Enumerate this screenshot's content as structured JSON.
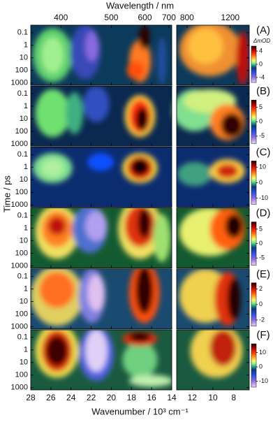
{
  "chart_data": [
    {
      "type": "heatmap",
      "label": "(A)",
      "top_label": "Wavelength / nm",
      "top_ticks": [
        400,
        500,
        600,
        700
      ],
      "top2_ticks": [
        800,
        1200
      ],
      "xlim": [
        28,
        14
      ],
      "x2lim": [
        13.5,
        6.5
      ],
      "xticks": [
        28,
        26,
        24,
        22,
        20,
        18,
        16,
        14
      ],
      "x2ticks": [
        12,
        10,
        8
      ],
      "yscale": "log",
      "ylim": [
        0.025,
        1500
      ],
      "yticks": [
        0.1,
        1,
        10,
        100,
        1000
      ],
      "colorbar": {
        "label": "ΔmOD",
        "lim": [
          -5.5,
          5.5
        ],
        "ticks": [
          4,
          0,
          -4
        ]
      }
    },
    {
      "type": "heatmap",
      "label": "(B)",
      "xlim": [
        28,
        14
      ],
      "x2lim": [
        13.5,
        6.5
      ],
      "xticks": [
        28,
        26,
        24,
        22,
        20,
        18,
        16,
        14
      ],
      "x2ticks": [
        12,
        10,
        8
      ],
      "yscale": "log",
      "ylim": [
        0.025,
        1500
      ],
      "yticks": [
        0.1,
        1,
        10,
        100,
        1000
      ],
      "colorbar": {
        "lim": [
          -7.5,
          7.5
        ],
        "ticks": [
          5,
          0,
          -5
        ]
      }
    },
    {
      "type": "heatmap",
      "label": "(C)",
      "ylabel": "Time / ps",
      "xlim": [
        28,
        14
      ],
      "x2lim": [
        13.5,
        6.5
      ],
      "xticks": [
        28,
        26,
        24,
        22,
        20,
        18,
        16,
        14
      ],
      "x2ticks": [
        12,
        10,
        8
      ],
      "yscale": "log",
      "ylim": [
        0.025,
        1500
      ],
      "yticks": [
        0.1,
        1,
        10,
        100,
        1000
      ],
      "colorbar": {
        "lim": [
          -14,
          14
        ],
        "ticks": [
          10,
          0,
          -10
        ]
      }
    },
    {
      "type": "heatmap",
      "label": "(D)",
      "xlim": [
        28,
        14
      ],
      "x2lim": [
        13.5,
        6.5
      ],
      "xticks": [
        28,
        26,
        24,
        22,
        20,
        18,
        16,
        14
      ],
      "x2ticks": [
        12,
        10,
        8
      ],
      "yscale": "log",
      "ylim": [
        0.025,
        1500
      ],
      "yticks": [
        0.1,
        1,
        10,
        100,
        1000
      ],
      "colorbar": {
        "lim": [
          -7.5,
          7.5
        ],
        "ticks": [
          5,
          0,
          -5
        ]
      }
    },
    {
      "type": "heatmap",
      "label": "(E)",
      "xlim": [
        28,
        14
      ],
      "x2lim": [
        13.5,
        6.5
      ],
      "xticks": [
        28,
        26,
        24,
        22,
        20,
        18,
        16,
        14
      ],
      "x2ticks": [
        12,
        10,
        8
      ],
      "yscale": "log",
      "ylim": [
        0.025,
        1500
      ],
      "yticks": [
        0.1,
        1,
        10,
        100,
        1000
      ],
      "colorbar": {
        "lim": [
          -2.8,
          2.8
        ],
        "ticks": [
          2,
          0,
          -2
        ]
      }
    },
    {
      "type": "heatmap",
      "label": "(F)",
      "xlabel": "Wavenumber / 10³ cm⁻¹",
      "xtick_labels": true,
      "xlim": [
        28,
        14
      ],
      "x2lim": [
        13.5,
        6.5
      ],
      "xticks": [
        28,
        26,
        24,
        22,
        20,
        18,
        16,
        14
      ],
      "x2ticks": [
        12,
        10,
        8
      ],
      "yscale": "log",
      "ylim": [
        0.025,
        1500
      ],
      "yticks": [
        0.1,
        1,
        10,
        100,
        1000
      ],
      "colorbar": {
        "lim": [
          -14,
          16
        ],
        "ticks": [
          10,
          0,
          -10
        ]
      }
    }
  ]
}
